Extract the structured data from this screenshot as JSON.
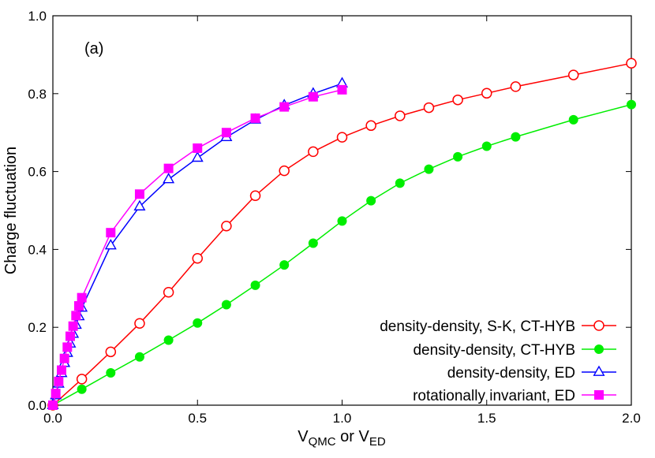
{
  "chart_data": {
    "type": "line",
    "annotation": "(a)",
    "xlabel_main": "V",
    "xlabel_sub1": "QMC",
    "xlabel_mid": " or V",
    "xlabel_sub2": "ED",
    "ylabel": "Charge fluctuation",
    "xlim": [
      0,
      2.0
    ],
    "ylim": [
      0,
      1.0
    ],
    "xticks": [
      0,
      0.5,
      1.0,
      1.5,
      2.0
    ],
    "xtick_labels": [
      "0.0",
      "0.5",
      "1.0",
      "1.5",
      "2.0"
    ],
    "yticks": [
      0,
      0.2,
      0.4,
      0.6,
      0.8,
      1.0
    ],
    "ytick_labels": [
      "0.0",
      "0.2",
      "0.4",
      "0.6",
      "0.8",
      "1.0"
    ],
    "grid": false,
    "legend_position": "bottom-right",
    "series": [
      {
        "name": "density-density, S-K, CT-HYB",
        "color": "#ff0000",
        "marker": "open-circle",
        "x": [
          0,
          0.1,
          0.2,
          0.3,
          0.4,
          0.5,
          0.6,
          0.7,
          0.8,
          0.9,
          1.0,
          1.1,
          1.2,
          1.3,
          1.4,
          1.5,
          1.6,
          1.8,
          2.0
        ],
        "y": [
          0.0,
          0.067,
          0.137,
          0.21,
          0.29,
          0.377,
          0.46,
          0.538,
          0.602,
          0.651,
          0.688,
          0.718,
          0.743,
          0.764,
          0.784,
          0.801,
          0.818,
          0.848,
          0.878
        ]
      },
      {
        "name": "density-density, CT-HYB",
        "color": "#00ee00",
        "marker": "filled-circle",
        "x": [
          0,
          0.1,
          0.2,
          0.3,
          0.4,
          0.5,
          0.6,
          0.7,
          0.8,
          0.9,
          1.0,
          1.1,
          1.2,
          1.3,
          1.4,
          1.5,
          1.6,
          1.8,
          2.0
        ],
        "y": [
          0.0,
          0.041,
          0.083,
          0.124,
          0.167,
          0.211,
          0.258,
          0.308,
          0.36,
          0.416,
          0.473,
          0.525,
          0.57,
          0.606,
          0.638,
          0.665,
          0.689,
          0.733,
          0.772
        ]
      },
      {
        "name": "density-density, ED",
        "color": "#0000ff",
        "marker": "open-triangle",
        "x": [
          0,
          0.01,
          0.02,
          0.03,
          0.04,
          0.05,
          0.06,
          0.07,
          0.08,
          0.09,
          0.1,
          0.2,
          0.3,
          0.4,
          0.5,
          0.6,
          0.7,
          0.8,
          0.9,
          1.0
        ],
        "y": [
          0.0,
          0.025,
          0.055,
          0.082,
          0.108,
          0.134,
          0.158,
          0.183,
          0.206,
          0.228,
          0.25,
          0.41,
          0.51,
          0.58,
          0.635,
          0.688,
          0.733,
          0.77,
          0.8,
          0.826
        ]
      },
      {
        "name": "rotationally invariant, ED",
        "color": "#ff00ff",
        "marker": "filled-square",
        "x": [
          0,
          0.01,
          0.02,
          0.03,
          0.04,
          0.05,
          0.06,
          0.07,
          0.08,
          0.09,
          0.1,
          0.2,
          0.3,
          0.4,
          0.5,
          0.6,
          0.7,
          0.8,
          0.9,
          1.0
        ],
        "y": [
          0.0,
          0.03,
          0.061,
          0.09,
          0.12,
          0.149,
          0.177,
          0.203,
          0.23,
          0.255,
          0.276,
          0.443,
          0.542,
          0.608,
          0.66,
          0.7,
          0.737,
          0.766,
          0.792,
          0.81
        ]
      }
    ]
  }
}
